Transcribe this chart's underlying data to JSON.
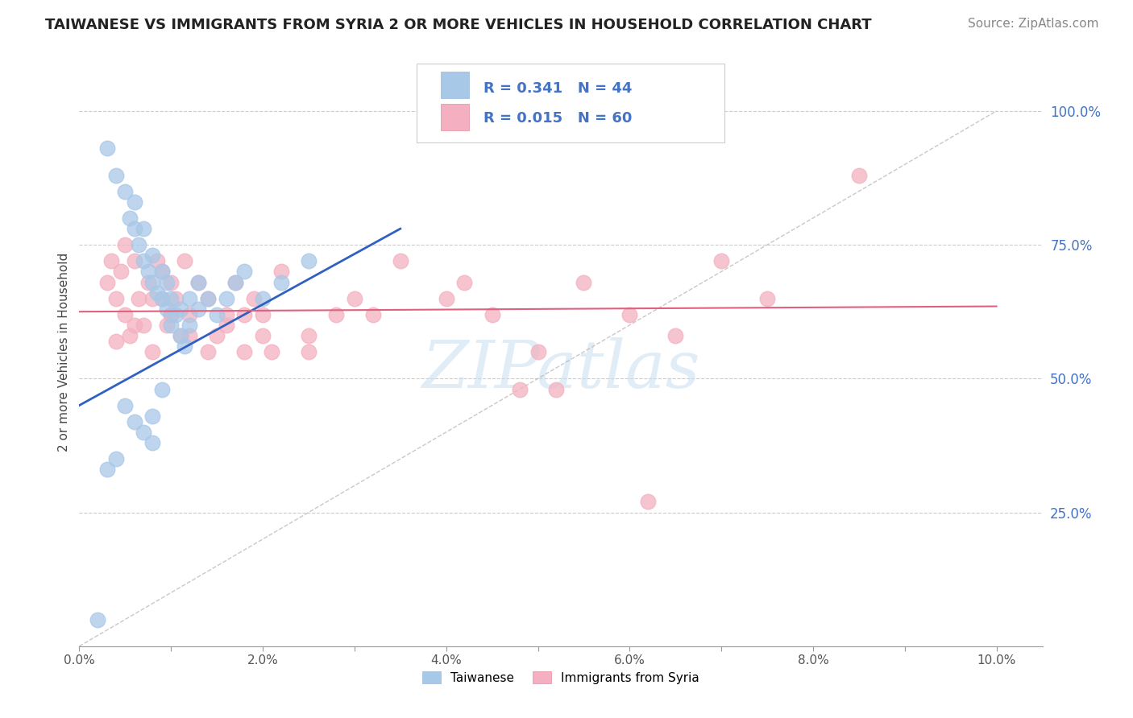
{
  "title": "TAIWANESE VS IMMIGRANTS FROM SYRIA 2 OR MORE VEHICLES IN HOUSEHOLD CORRELATION CHART",
  "source": "Source: ZipAtlas.com",
  "ylabel": "2 or more Vehicles in Household",
  "x_tick_labels": [
    "0.0%",
    "",
    "2.0%",
    "",
    "4.0%",
    "",
    "6.0%",
    "",
    "8.0%",
    "",
    "10.0%"
  ],
  "x_tick_vals": [
    0,
    1,
    2,
    3,
    4,
    5,
    6,
    7,
    8,
    9,
    10
  ],
  "y_tick_labels_right": [
    "100.0%",
    "75.0%",
    "50.0%",
    "25.0%"
  ],
  "y_tick_vals": [
    100,
    75,
    50,
    25
  ],
  "xlim": [
    0.0,
    10.5
  ],
  "ylim": [
    0.0,
    110.0
  ],
  "legend_label1": "Taiwanese",
  "legend_label2": "Immigrants from Syria",
  "R1": "0.341",
  "N1": "44",
  "R2": "0.015",
  "N2": "60",
  "color_taiwanese": "#a8c8e8",
  "color_syria": "#f4b0c0",
  "line_color_taiwanese": "#3060c0",
  "line_color_syria": "#e06080",
  "tw_line_x0": 0.0,
  "tw_line_y0": 45.0,
  "tw_line_x1": 3.5,
  "tw_line_y1": 78.0,
  "sy_line_x0": 0.0,
  "sy_line_y0": 62.5,
  "sy_line_x1": 10.0,
  "sy_line_y1": 63.5,
  "diag_x0": 0.0,
  "diag_y0": 0.0,
  "diag_x1": 10.0,
  "diag_y1": 100.0,
  "taiwanese_x": [
    0.3,
    0.4,
    0.5,
    0.55,
    0.6,
    0.6,
    0.65,
    0.7,
    0.7,
    0.75,
    0.8,
    0.8,
    0.85,
    0.9,
    0.9,
    0.95,
    0.95,
    1.0,
    1.0,
    1.05,
    1.1,
    1.1,
    1.15,
    1.2,
    1.2,
    1.3,
    1.3,
    1.4,
    1.5,
    1.6,
    1.7,
    1.8,
    2.0,
    2.2,
    2.5,
    0.5,
    0.6,
    0.7,
    0.8,
    0.8,
    0.9,
    0.3,
    0.4,
    0.2
  ],
  "taiwanese_y": [
    93.0,
    88.0,
    85.0,
    80.0,
    83.0,
    78.0,
    75.0,
    72.0,
    78.0,
    70.0,
    68.0,
    73.0,
    66.0,
    65.0,
    70.0,
    63.0,
    68.0,
    60.0,
    65.0,
    62.0,
    58.0,
    63.0,
    56.0,
    60.0,
    65.0,
    63.0,
    68.0,
    65.0,
    62.0,
    65.0,
    68.0,
    70.0,
    65.0,
    68.0,
    72.0,
    45.0,
    42.0,
    40.0,
    38.0,
    43.0,
    48.0,
    33.0,
    35.0,
    5.0
  ],
  "syria_x": [
    0.3,
    0.35,
    0.4,
    0.45,
    0.5,
    0.5,
    0.55,
    0.6,
    0.65,
    0.7,
    0.75,
    0.8,
    0.85,
    0.9,
    0.9,
    0.95,
    1.0,
    1.0,
    1.05,
    1.1,
    1.15,
    1.2,
    1.3,
    1.4,
    1.5,
    1.6,
    1.7,
    1.8,
    1.9,
    2.0,
    2.1,
    2.2,
    2.5,
    2.8,
    3.0,
    3.5,
    4.0,
    4.2,
    4.5,
    5.0,
    5.2,
    5.5,
    6.0,
    6.5,
    7.0,
    7.5,
    8.5,
    0.4,
    0.6,
    0.8,
    1.0,
    1.2,
    1.4,
    1.6,
    1.8,
    2.0,
    2.5,
    3.2,
    4.8,
    6.2
  ],
  "syria_y": [
    68.0,
    72.0,
    65.0,
    70.0,
    62.0,
    75.0,
    58.0,
    72.0,
    65.0,
    60.0,
    68.0,
    55.0,
    72.0,
    65.0,
    70.0,
    60.0,
    68.0,
    62.0,
    65.0,
    58.0,
    72.0,
    62.0,
    68.0,
    65.0,
    58.0,
    62.0,
    68.0,
    55.0,
    65.0,
    62.0,
    55.0,
    70.0,
    58.0,
    62.0,
    65.0,
    72.0,
    65.0,
    68.0,
    62.0,
    55.0,
    48.0,
    68.0,
    62.0,
    58.0,
    72.0,
    65.0,
    88.0,
    57.0,
    60.0,
    65.0,
    62.0,
    58.0,
    55.0,
    60.0,
    62.0,
    58.0,
    55.0,
    62.0,
    48.0,
    27.0
  ],
  "watermark": "ZIPatlas",
  "background_color": "#ffffff",
  "grid_color": "#cccccc"
}
